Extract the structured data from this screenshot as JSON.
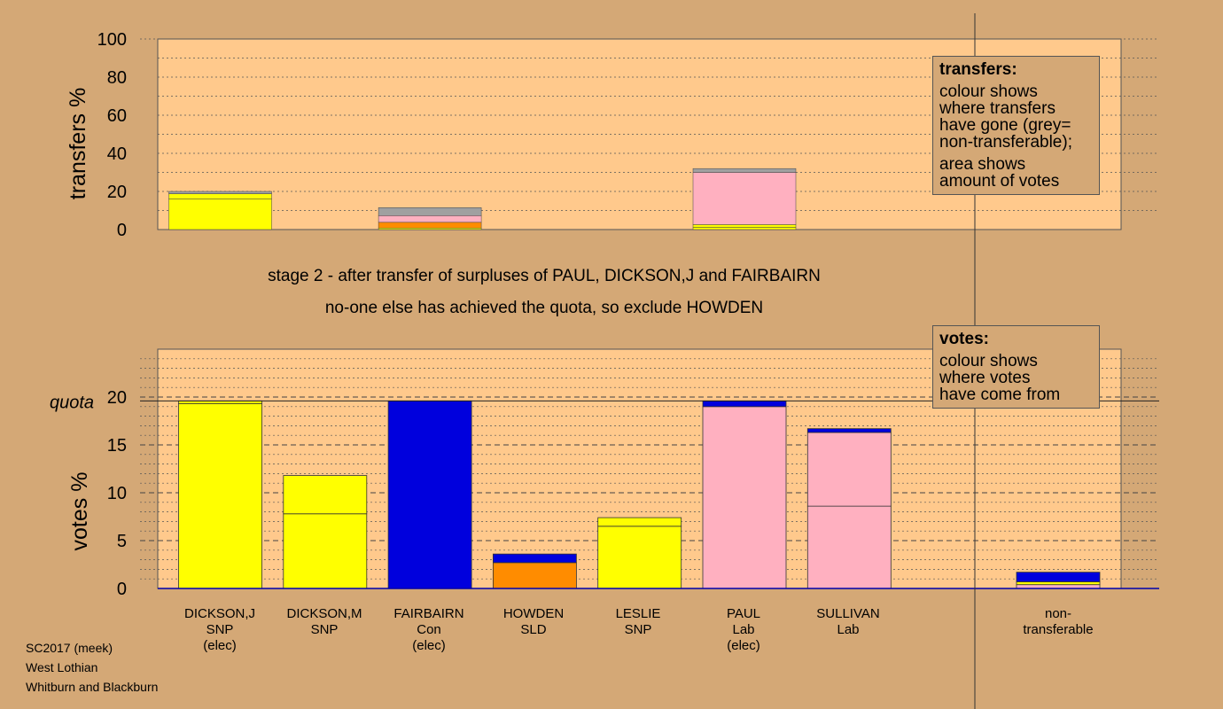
{
  "colors": {
    "background": "#d4a876",
    "plot_bg": "#ffc98c",
    "SNP": "#ffff00",
    "Con": "#0000dd",
    "SLD": "#ff8c00",
    "Lab": "#ffb0c0",
    "nontransferable": "#a0a0a0"
  },
  "stage": {
    "line1": "stage 2 - after transfer of surpluses of PAUL, DICKSON,J and FAIRBAIRN",
    "line2": "no-one else has achieved the quota, so exclude HOWDEN"
  },
  "legend_transfers": {
    "title": "transfers:",
    "lines": [
      "colour shows",
      "where transfers",
      "have gone (grey=",
      "non-transferable);"
    ],
    "lines2": [
      "area shows",
      "amount of votes"
    ]
  },
  "legend_votes": {
    "title": "votes:",
    "lines": [
      "colour shows",
      "where votes",
      "have come from"
    ]
  },
  "footer": {
    "line1": "SC2017 (meek)",
    "line2": "West Lothian",
    "line3": "Whitburn and Blackburn"
  },
  "chart_data": [
    {
      "type": "bar",
      "ylabel": "transfers %",
      "ylim": [
        0,
        100
      ],
      "yticks": [
        "0",
        "20",
        "40",
        "60",
        "80",
        "100"
      ],
      "bars": [
        {
          "x_index": 0,
          "segments": [
            {
              "party": "SNP",
              "value": 16.0
            },
            {
              "party": "SNP",
              "value": 2.8
            },
            {
              "party": "nontransferable",
              "value": 1.2
            }
          ]
        },
        {
          "x_index": 2,
          "segments": [
            {
              "party": "SNP",
              "value": 0.8
            },
            {
              "party": "SLD",
              "value": 3.0
            },
            {
              "party": "Lab",
              "value": 3.5
            },
            {
              "party": "nontransferable",
              "value": 4.2
            }
          ]
        },
        {
          "x_index": 5,
          "segments": [
            {
              "party": "SNP",
              "value": 1.2
            },
            {
              "party": "SNP",
              "value": 1.4
            },
            {
              "party": "Lab",
              "value": 27.4
            },
            {
              "party": "nontransferable",
              "value": 2.0
            }
          ]
        }
      ]
    },
    {
      "type": "bar",
      "ylabel": "votes %",
      "ylim": [
        0,
        25
      ],
      "yticks": [
        "0",
        "5",
        "10",
        "15",
        "20"
      ],
      "quota": 19.6,
      "quota_label": "quota",
      "candidates": [
        {
          "name": "DICKSON,J",
          "party": "SNP",
          "status": "(elec)",
          "segments": [
            {
              "party": "SNP",
              "value": 19.3
            },
            {
              "party": "SNP",
              "value": 0.3
            }
          ]
        },
        {
          "name": "DICKSON,M",
          "party": "SNP",
          "status": "",
          "segments": [
            {
              "party": "SNP",
              "value": 7.8
            },
            {
              "party": "SNP",
              "value": 4.0
            }
          ]
        },
        {
          "name": "FAIRBAIRN",
          "party": "Con",
          "status": "(elec)",
          "segments": [
            {
              "party": "Con",
              "value": 19.6
            }
          ]
        },
        {
          "name": "HOWDEN",
          "party": "SLD",
          "status": "",
          "segments": [
            {
              "party": "SLD",
              "value": 2.7
            },
            {
              "party": "Con",
              "value": 0.9
            }
          ]
        },
        {
          "name": "LESLIE",
          "party": "SNP",
          "status": "",
          "segments": [
            {
              "party": "SNP",
              "value": 6.5
            },
            {
              "party": "SNP",
              "value": 0.9
            }
          ]
        },
        {
          "name": "PAUL",
          "party": "Lab",
          "status": "(elec)",
          "segments": [
            {
              "party": "Lab",
              "value": 19.0
            },
            {
              "party": "Con",
              "value": 0.6
            }
          ]
        },
        {
          "name": "SULLIVAN",
          "party": "Lab",
          "status": "",
          "segments": [
            {
              "party": "Lab",
              "value": 8.6
            },
            {
              "party": "Lab",
              "value": 7.7
            },
            {
              "party": "Con",
              "value": 0.4
            }
          ]
        }
      ],
      "nontransferable": {
        "label1": "non-",
        "label2": "transferable",
        "segments": [
          {
            "party": "Lab",
            "value": 0.4
          },
          {
            "party": "SNP",
            "value": 0.3
          },
          {
            "party": "Con",
            "value": 1.0
          }
        ]
      }
    }
  ]
}
